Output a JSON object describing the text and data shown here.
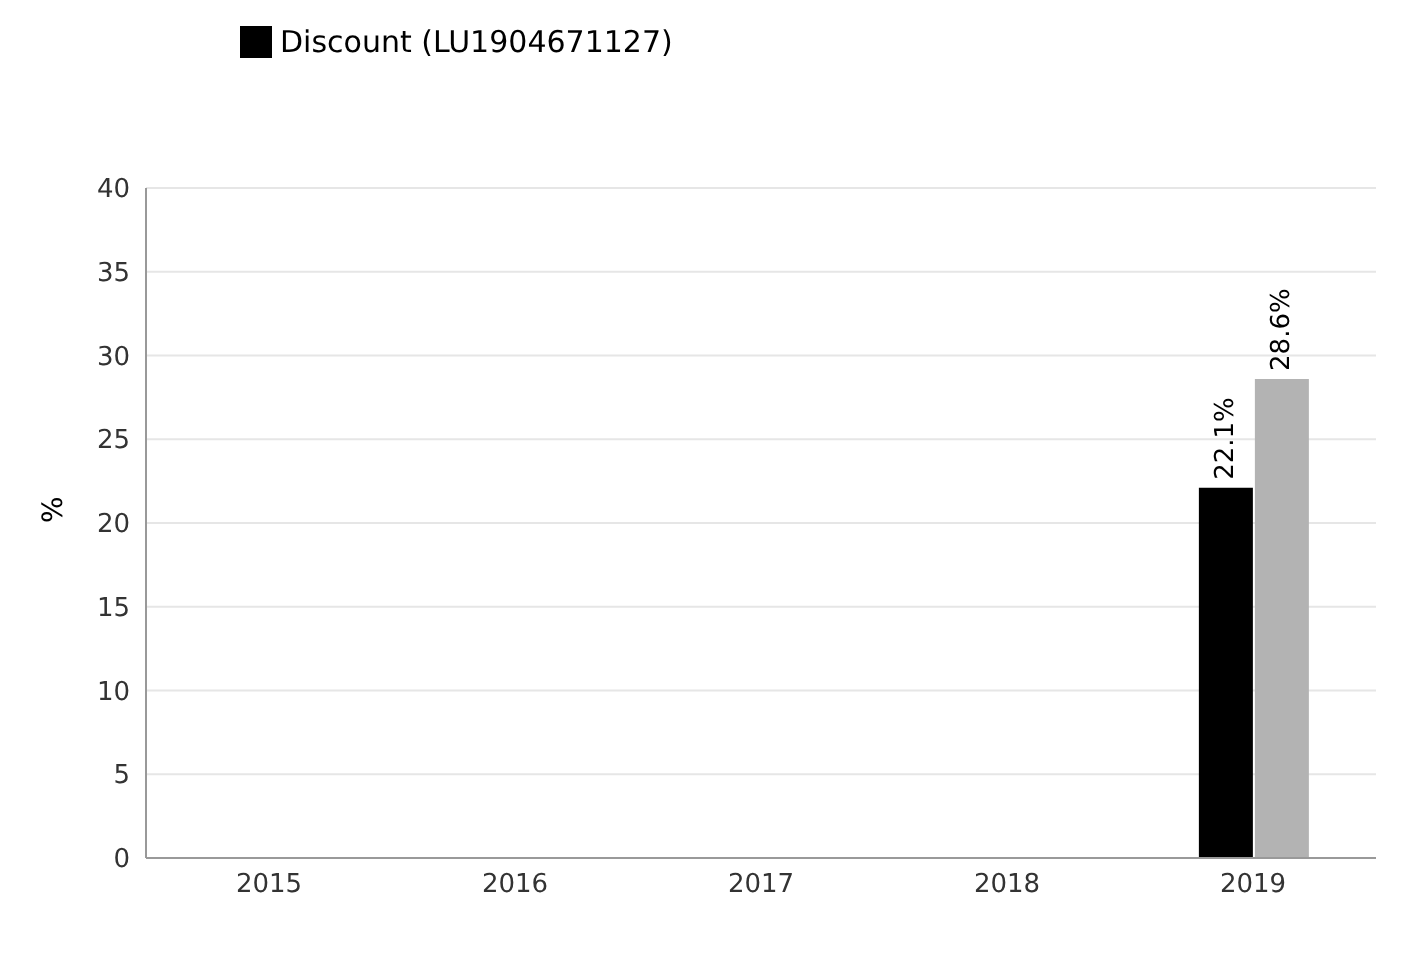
{
  "chart_data": {
    "type": "bar",
    "ylabel": "%",
    "categories": [
      "2015",
      "2016",
      "2017",
      "2018",
      "2019"
    ],
    "series": [
      {
        "name": "Discount (LU1904671127)",
        "color": "#000000",
        "values": [
          null,
          null,
          null,
          null,
          22.1
        ],
        "value_labels": [
          null,
          null,
          null,
          null,
          "22.1%"
        ]
      },
      {
        "color": "#b3b3b3",
        "values": [
          null,
          null,
          null,
          null,
          28.6
        ],
        "value_labels": [
          null,
          null,
          null,
          null,
          "28.6%"
        ]
      }
    ],
    "ylim": [
      0,
      40
    ],
    "yticks": [
      0,
      5,
      10,
      15,
      20,
      25,
      30,
      35,
      40
    ],
    "grid": "y",
    "legend": "top left"
  }
}
